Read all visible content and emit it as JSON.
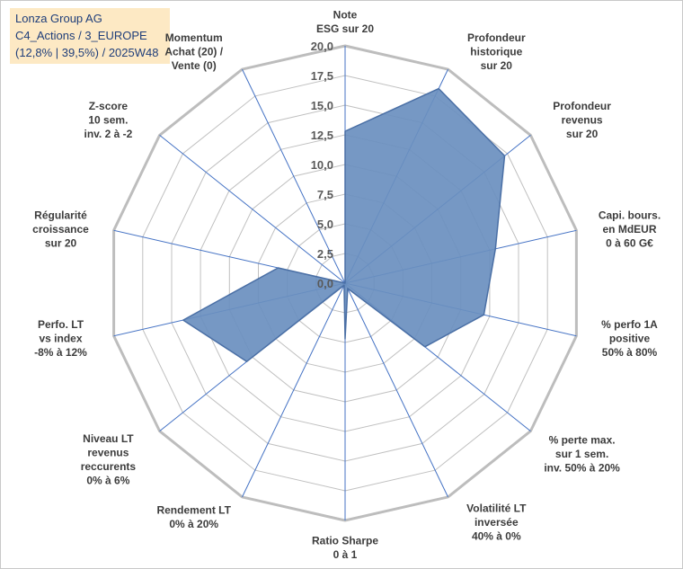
{
  "title_box": {
    "line1": "Lonza Group AG",
    "line2": "C4_Actions / 3_EUROPE",
    "line3": "(12,8% | 39,5%) / 2025W48"
  },
  "colors": {
    "fill": "#6a8fbf",
    "stroke": "#4a6fa5",
    "grid": "#c0c0c0",
    "outer_ring": "#bdbdbd",
    "spoke": "#4472c4",
    "title_bg": "#fde9c4",
    "title_text": "#1f3e7a"
  },
  "chart_data": {
    "type": "radar",
    "title": "Lonza Group AG",
    "range": [
      0,
      20
    ],
    "ticks": [
      "0,0",
      "2,5",
      "5,0",
      "7,5",
      "10,0",
      "12,5",
      "15,0",
      "17,5",
      "20,0"
    ],
    "axes": [
      {
        "lines": [
          "Note",
          "ESG sur 20"
        ]
      },
      {
        "lines": [
          "Profondeur",
          "historique",
          "sur 20"
        ]
      },
      {
        "lines": [
          "Profondeur",
          "revenus",
          "sur 20"
        ]
      },
      {
        "lines": [
          "Capi. bours.",
          "en MdEUR",
          "0 à 60 G€"
        ]
      },
      {
        "lines": [
          "% perfo 1A",
          "positive",
          "50% à 80%"
        ]
      },
      {
        "lines": [
          "% perte max.",
          "sur 1 sem.",
          "inv. 50% à 20%"
        ]
      },
      {
        "lines": [
          "Volatilité LT",
          "inversée",
          "40% à 0%"
        ]
      },
      {
        "lines": [
          "Ratio Sharpe",
          "0 à 1"
        ]
      },
      {
        "lines": [
          "Rendement LT",
          "0% à 20%"
        ]
      },
      {
        "lines": [
          "Niveau LT",
          "revenus",
          "reccurents",
          "0% à 6%"
        ]
      },
      {
        "lines": [
          "Perfo. LT",
          "vs index",
          "-8% à 12%"
        ]
      },
      {
        "lines": [
          "Régularité",
          "croissance",
          "sur 20"
        ]
      },
      {
        "lines": [
          "Z-score",
          "10 sem.",
          "inv. 2 à -2"
        ]
      },
      {
        "lines": [
          "Momentum",
          "Achat (20) /",
          "Vente (0)"
        ]
      }
    ],
    "series": [
      {
        "name": "Lonza Group AG",
        "values": [
          12.8,
          18.2,
          17.2,
          13.0,
          12.0,
          8.6,
          0.5,
          4.7,
          0.2,
          10.6,
          14.0,
          5.8,
          0.0,
          0.0
        ]
      }
    ]
  }
}
